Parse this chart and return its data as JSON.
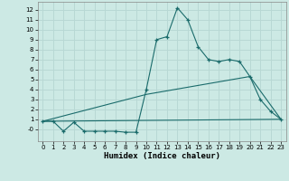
{
  "title": "",
  "xlabel": "Humidex (Indice chaleur)",
  "ylabel": "",
  "background_color": "#cce9e4",
  "grid_color": "#b8d8d4",
  "line_color": "#1a6b6b",
  "xlim": [
    -0.5,
    23.5
  ],
  "ylim": [
    -1.2,
    12.8
  ],
  "xticks": [
    0,
    1,
    2,
    3,
    4,
    5,
    6,
    7,
    8,
    9,
    10,
    11,
    12,
    13,
    14,
    15,
    16,
    17,
    18,
    19,
    20,
    21,
    22,
    23
  ],
  "yticks": [
    0,
    1,
    2,
    3,
    4,
    5,
    6,
    7,
    8,
    9,
    10,
    11,
    12
  ],
  "ytick_labels": [
    "-0",
    "1",
    "2",
    "3",
    "4",
    "5",
    "6",
    "7",
    "8",
    "9",
    "10",
    "11",
    "12"
  ],
  "line1_x": [
    0,
    1,
    2,
    3,
    4,
    5,
    6,
    7,
    8,
    9,
    10,
    11,
    12,
    13,
    14,
    15,
    16,
    17,
    18,
    19,
    20,
    21,
    22,
    23
  ],
  "line1_y": [
    0.8,
    0.8,
    -0.2,
    0.7,
    -0.2,
    -0.2,
    -0.2,
    -0.2,
    -0.3,
    -0.3,
    4.0,
    9.0,
    9.3,
    12.2,
    11.0,
    8.3,
    7.0,
    6.8,
    7.0,
    6.8,
    5.3,
    3.0,
    1.8,
    1.0
  ],
  "line2_x": [
    0,
    23
  ],
  "line2_y": [
    0.8,
    1.0
  ],
  "line3_x": [
    0,
    10,
    20,
    23
  ],
  "line3_y": [
    0.8,
    3.5,
    5.3,
    1.0
  ]
}
